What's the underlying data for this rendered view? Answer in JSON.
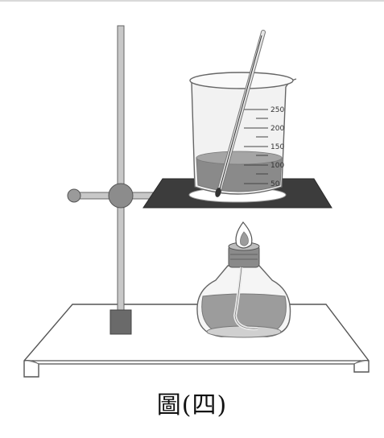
{
  "figure": {
    "caption": "圖(四)",
    "beaker_scale": {
      "marks": [
        "250",
        "200",
        "150",
        "100",
        "50"
      ]
    },
    "labels": {
      "ring_stand": "",
      "beaker": "",
      "thermometer": "",
      "wire_gauze": "",
      "alcohol_lamp": ""
    }
  }
}
